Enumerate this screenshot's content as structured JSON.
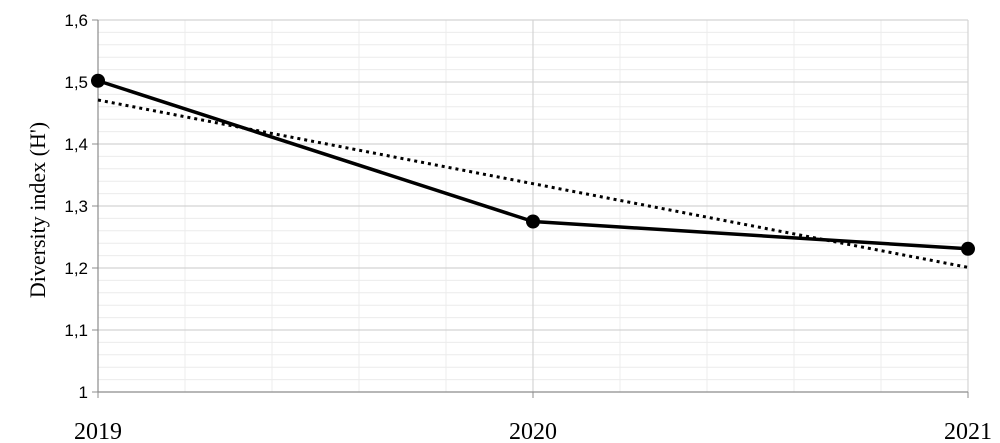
{
  "chart_data": {
    "type": "line",
    "title": "",
    "xlabel": "",
    "ylabel": "Diversity index (H')",
    "categories": [
      "2019",
      "2020",
      "2021"
    ],
    "ylim": [
      1,
      1.6
    ],
    "y_ticks": [
      "1",
      "1,1",
      "1,2",
      "1,3",
      "1,4",
      "1,5",
      "1,6"
    ],
    "grid": true,
    "series": [
      {
        "values": [
          1.502,
          1.275,
          1.231
        ],
        "line_style": "solid",
        "marker": "circle",
        "color": "#000000"
      },
      {
        "values": [
          1.471,
          1.336,
          1.201
        ],
        "line_style": "dotted",
        "marker": "none",
        "color": "#000000",
        "role": "linear trendline"
      }
    ]
  }
}
